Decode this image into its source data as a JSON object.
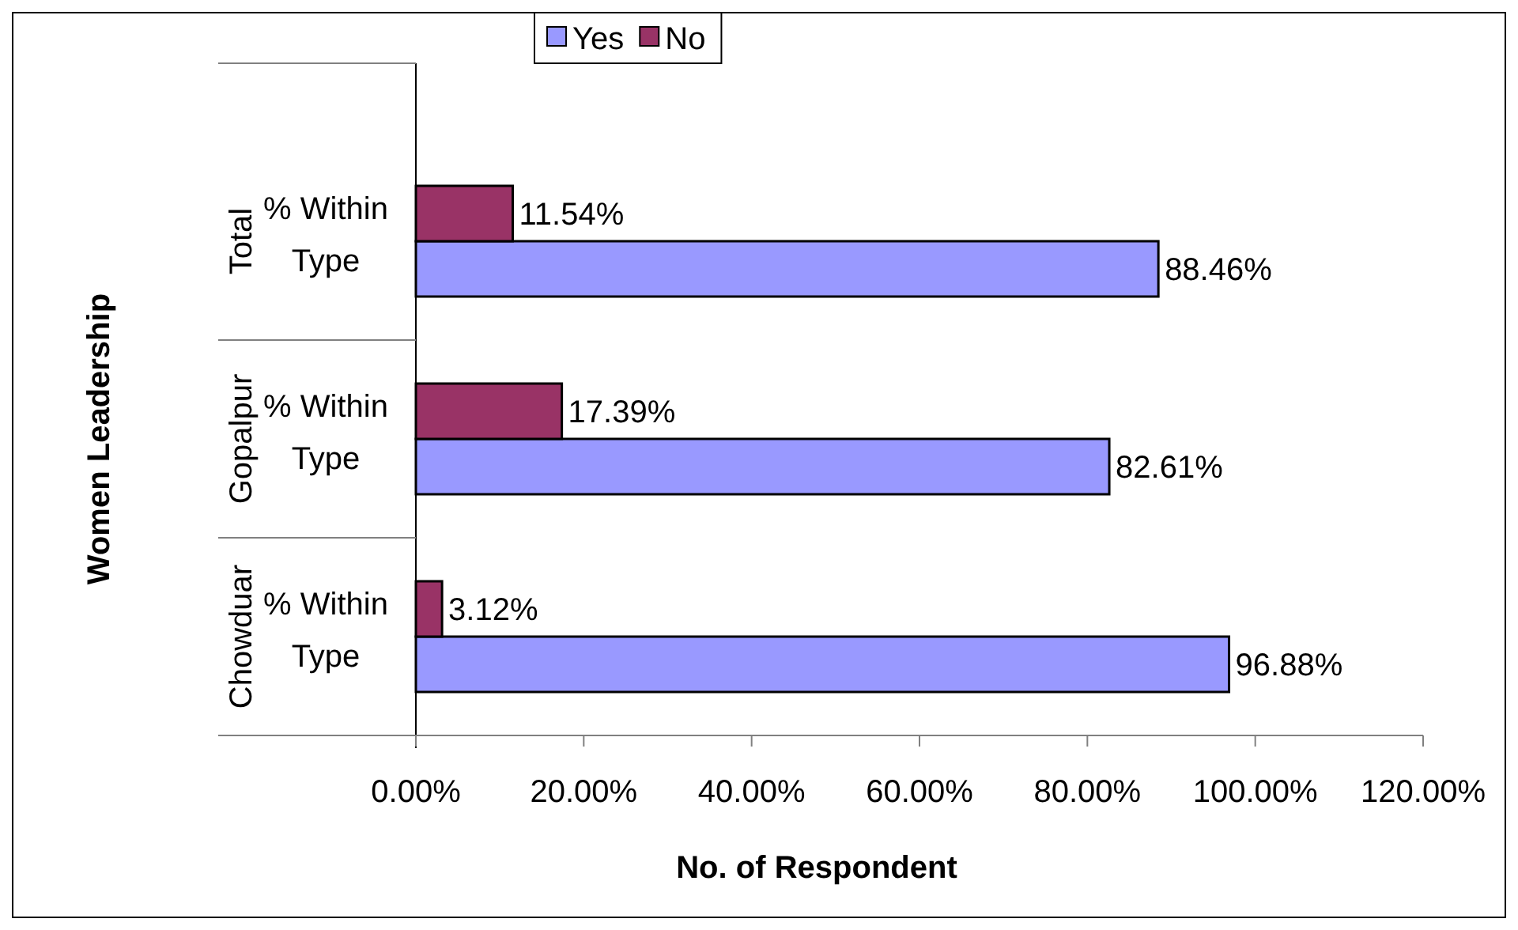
{
  "chart_data": {
    "type": "bar",
    "orientation": "horizontal",
    "xlabel": "No. of Respondent",
    "ylabel": "Women Leadership",
    "categories": [
      "% Within Type",
      "% Within Type",
      "% Within Type"
    ],
    "y_categories": [
      "Total",
      "Gopalpur",
      "Chowduar"
    ],
    "series": [
      {
        "name": "Yes",
        "color": "#9999ff",
        "values": [
          88.46,
          82.61,
          96.88
        ],
        "value_labels": [
          "88.46%",
          "82.61%",
          "96.88%"
        ]
      },
      {
        "name": "No",
        "color": "#993366",
        "values": [
          11.54,
          17.39,
          3.12
        ],
        "value_labels": [
          "11.54%",
          "17.39%",
          "3.12%"
        ]
      }
    ],
    "xlim": [
      0,
      120
    ],
    "xticks": [
      {
        "value": 0,
        "label": "0.00%"
      },
      {
        "value": 20,
        "label": "20.00%"
      },
      {
        "value": 40,
        "label": "40.00%"
      },
      {
        "value": 60,
        "label": "60.00%"
      },
      {
        "value": 80,
        "label": "80.00%"
      },
      {
        "value": 100,
        "label": "100.00%"
      },
      {
        "value": 120,
        "label": "120.00%"
      }
    ],
    "grid": false,
    "legend": "top"
  }
}
